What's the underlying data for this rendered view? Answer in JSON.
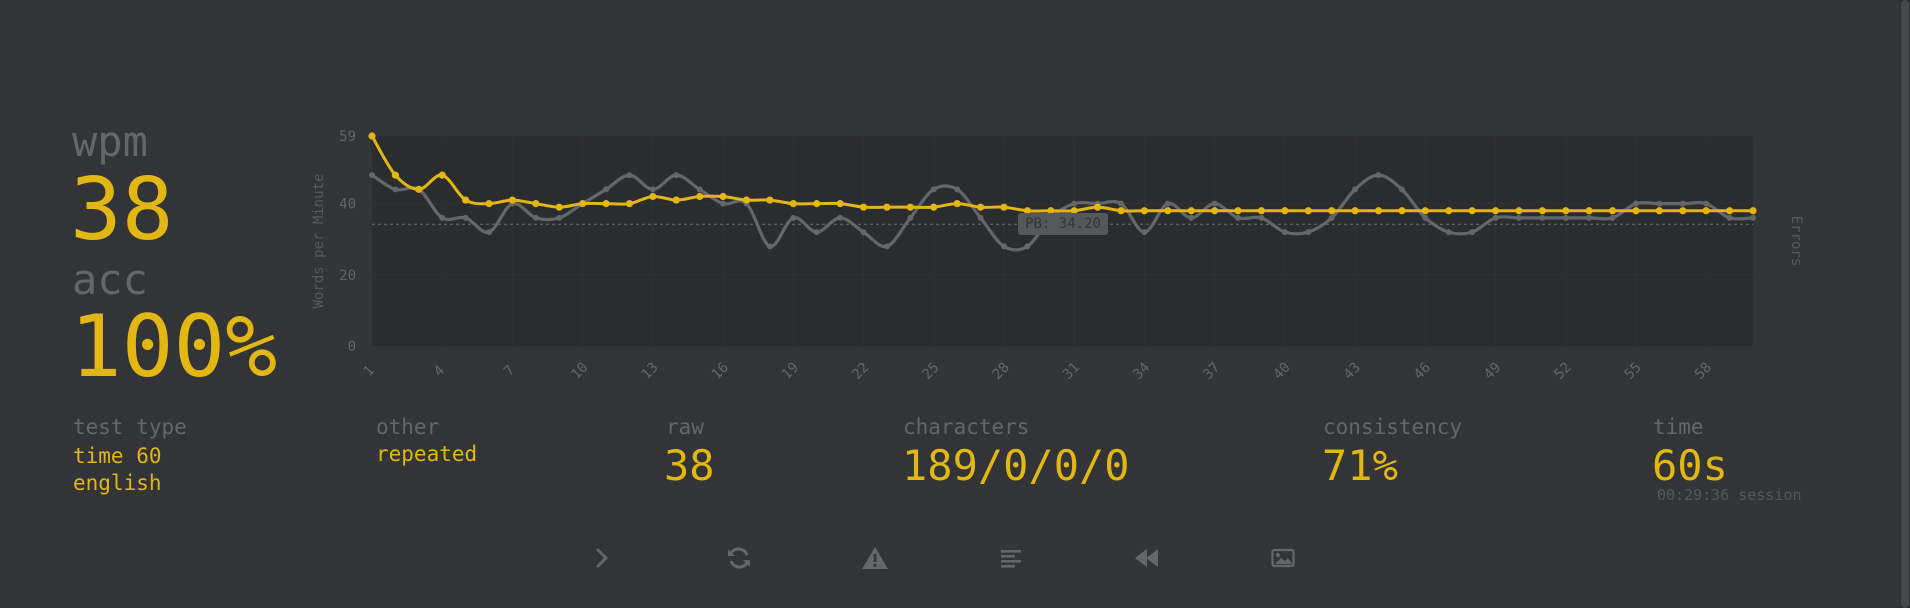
{
  "colors": {
    "background": "#323437",
    "main": "#e2b714",
    "sub": "#646669",
    "raw_line": "#646669"
  },
  "stats": {
    "wpm_label": "wpm",
    "wpm_value": "38",
    "acc_label": "acc",
    "acc_value": "100%"
  },
  "details": {
    "test_type_label": "test type",
    "test_type_line1": "time 60",
    "test_type_line2": "english",
    "other_label": "other",
    "other_value": "repeated",
    "raw_label": "raw",
    "raw_value": "38",
    "characters_label": "characters",
    "characters_value": "189/0/0/0",
    "consistency_label": "consistency",
    "consistency_value": "71%",
    "time_label": "time",
    "time_value": "60s",
    "session_text": "00:29:36 session"
  },
  "chart_data": {
    "type": "line",
    "ylabel": "Words per Minute",
    "y2label": "Errors",
    "ylim": [
      0,
      59
    ],
    "yticks": [
      "59",
      "40",
      "20",
      "0"
    ],
    "ytick_values": [
      59,
      40,
      20,
      0
    ],
    "x": [
      1,
      2,
      3,
      4,
      5,
      6,
      7,
      8,
      9,
      10,
      11,
      12,
      13,
      14,
      15,
      16,
      17,
      18,
      19,
      20,
      21,
      22,
      23,
      24,
      25,
      26,
      27,
      28,
      29,
      30,
      31,
      32,
      33,
      34,
      35,
      36,
      37,
      38,
      39,
      40,
      41,
      42,
      43,
      44,
      45,
      46,
      47,
      48,
      49,
      50,
      51,
      52,
      53,
      54,
      55,
      56,
      57,
      58,
      59,
      60
    ],
    "xticks": [
      "1",
      "4",
      "7",
      "10",
      "13",
      "16",
      "19",
      "22",
      "25",
      "28",
      "31",
      "34",
      "37",
      "40",
      "43",
      "46",
      "49",
      "52",
      "55",
      "58"
    ],
    "personal_best": {
      "value": 34.2,
      "label": "PB: 34.20"
    },
    "series": [
      {
        "name": "wpm",
        "color": "#e2b714",
        "values": [
          59,
          48,
          44,
          48,
          41,
          40,
          41,
          40,
          39,
          40,
          40,
          40,
          42,
          41,
          42,
          42,
          41,
          41,
          40,
          40,
          40,
          39,
          39,
          39,
          39,
          40,
          39,
          39,
          38,
          38,
          38,
          39,
          38,
          38,
          38,
          38,
          38,
          38,
          38,
          38,
          38,
          38,
          38,
          38,
          38,
          38,
          38,
          38,
          38,
          38,
          38,
          38,
          38,
          38,
          38,
          38,
          38,
          38,
          38,
          38
        ]
      },
      {
        "name": "raw",
        "color": "#646669",
        "values": [
          48,
          44,
          44,
          36,
          36,
          32,
          40,
          36,
          36,
          40,
          44,
          48,
          44,
          48,
          44,
          40,
          40,
          28,
          36,
          32,
          36,
          32,
          28,
          36,
          44,
          44,
          36,
          28,
          28,
          36,
          40,
          40,
          40,
          32,
          40,
          36,
          40,
          36,
          36,
          32,
          32,
          36,
          44,
          48,
          44,
          36,
          32,
          32,
          36,
          36,
          36,
          36,
          36,
          36,
          40,
          40,
          40,
          40,
          36,
          36
        ]
      }
    ]
  },
  "buttons": [
    {
      "name": "next-test-button",
      "icon": "chevron-right-icon"
    },
    {
      "name": "restart-test-button",
      "icon": "refresh-icon"
    },
    {
      "name": "practice-words-button",
      "icon": "warning-icon"
    },
    {
      "name": "word-history-button",
      "icon": "align-left-icon"
    },
    {
      "name": "replay-button",
      "icon": "rewind-icon"
    },
    {
      "name": "save-screenshot-button",
      "icon": "image-icon"
    }
  ]
}
